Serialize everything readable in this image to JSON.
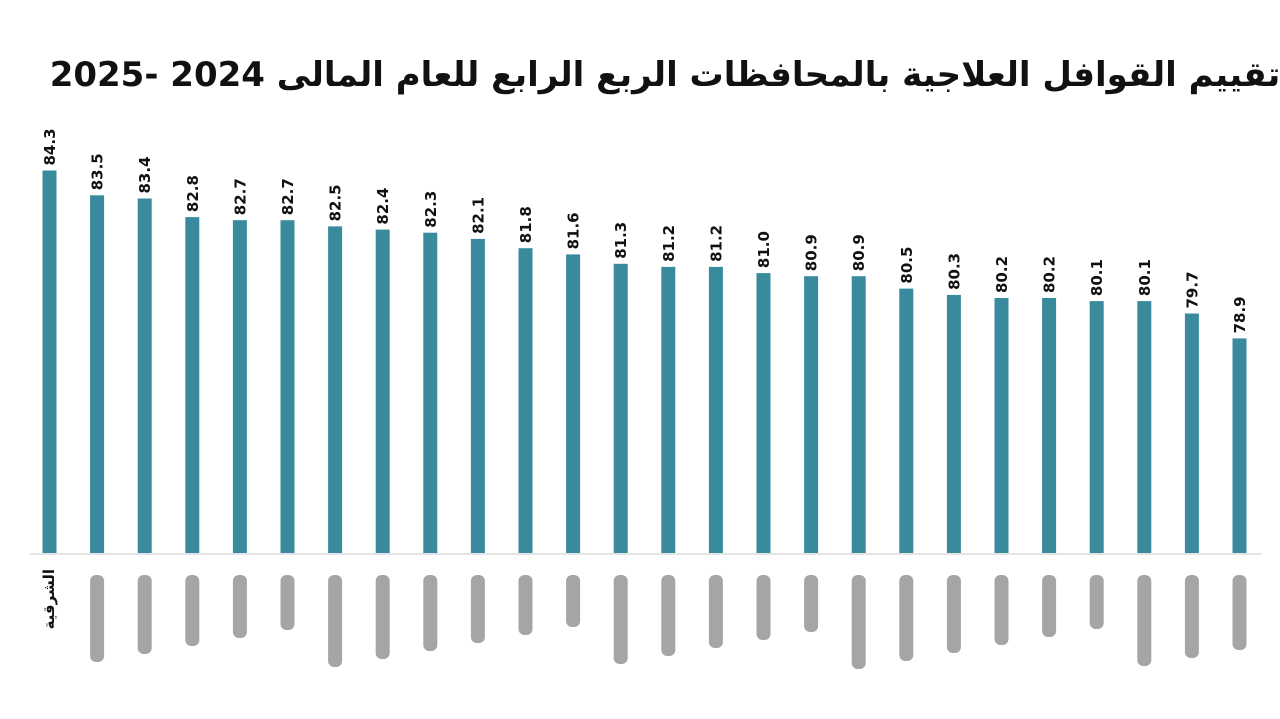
{
  "chart_data": {
    "type": "bar",
    "title": "تقييم القوافل العلاجية بالمحافظات الربع الرابع  للعام المالى 2024 -2025",
    "categories": [
      "الشرقية",
      "",
      "",
      "",
      "",
      "",
      "",
      "",
      "",
      "",
      "",
      "",
      "",
      "",
      "",
      "",
      "",
      "",
      "",
      "",
      "",
      "",
      "",
      "",
      "",
      ""
    ],
    "values": [
      84.3,
      83.5,
      83.4,
      82.8,
      82.7,
      82.7,
      82.5,
      82.4,
      82.3,
      82.1,
      81.8,
      81.6,
      81.3,
      81.2,
      81.2,
      81.0,
      80.9,
      80.9,
      80.5,
      80.3,
      80.2,
      80.2,
      80.1,
      80.1,
      79.7,
      78.9
    ],
    "value_labels": [
      "84.3",
      "83.5",
      "83.4",
      "82.8",
      "82.7",
      "82.7",
      "82.5",
      "82.4",
      "82.3",
      "82.1",
      "81.8",
      "81.6",
      "81.3",
      "81.2",
      "81.2",
      "81.0",
      "80.9",
      "80.9",
      "80.5",
      "80.3",
      "80.2",
      "80.2",
      "80.1",
      "80.1",
      "79.7",
      "78.9"
    ],
    "ylim": [
      72,
      85
    ],
    "bar_color": "#3a8a9e",
    "axis_color": "#e4e4e4",
    "grid": false,
    "note": "category labels other than the first are blurred/unreadable in the original"
  }
}
